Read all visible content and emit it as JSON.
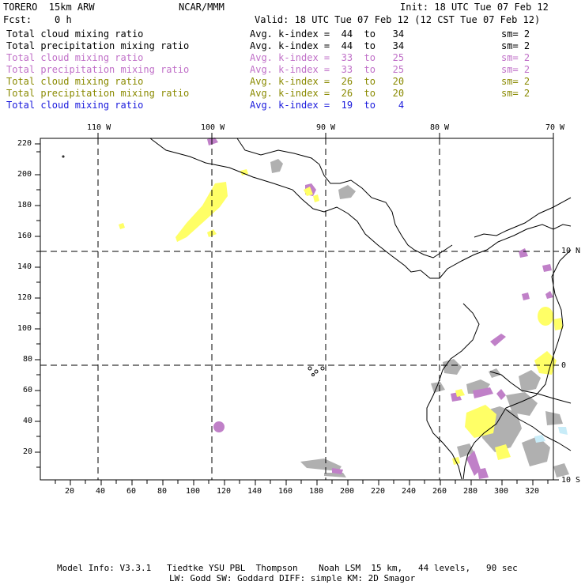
{
  "header": {
    "title_left": "TORERO  15km ARW",
    "title_center": "NCAR/MMM",
    "init": "Init: 18 UTC Tue 07 Feb 12",
    "fcst": "Fcst:    0 h",
    "valid": "Valid: 18 UTC Tue 07 Feb 12 (12 CST Tue 07 Feb 12)"
  },
  "legend": [
    {
      "field": "Total cloud mixing ratio",
      "index": "Avg. k-index =  44  to   34",
      "sm": "sm= 2",
      "color": "#000000"
    },
    {
      "field": "Total precipitation mixing ratio",
      "index": "Avg. k-index =  44  to   34",
      "sm": "sm= 2",
      "color": "#000000"
    },
    {
      "field": "Total cloud mixing ratio",
      "index": "Avg. k-index =  33  to   25",
      "sm": "sm= 2",
      "color": "#c070c8"
    },
    {
      "field": "Total precipitation mixing ratio",
      "index": "Avg. k-index =  33  to   25",
      "sm": "sm= 2",
      "color": "#c070c8"
    },
    {
      "field": "Total cloud mixing ratio",
      "index": "Avg. k-index =  26  to   20",
      "sm": "sm= 2",
      "color": "#8a8a00"
    },
    {
      "field": "Total precipitation mixing ratio",
      "index": "Avg. k-index =  26  to   20",
      "sm": "sm= 2",
      "color": "#8a8a00"
    },
    {
      "field": "Total cloud mixing ratio",
      "index": "Avg. k-index =  19  to    4",
      "sm": "",
      "color": "#1a1adc"
    }
  ],
  "longitude_labels": [
    "110 W",
    "100 W",
    "90 W",
    "80 W",
    "70 W"
  ],
  "latitude_labels": [
    "10 N",
    "0",
    "10 S"
  ],
  "x_ticks": [
    "20",
    "40",
    "60",
    "80",
    "100",
    "120",
    "140",
    "160",
    "180",
    "200",
    "220",
    "240",
    "260",
    "280",
    "300",
    "320"
  ],
  "y_ticks": [
    "220",
    "200",
    "180",
    "160",
    "140",
    "120",
    "100",
    "80",
    "60",
    "40",
    "20"
  ],
  "footer": {
    "line1": "Model Info: V3.3.1   Tiedtke YSU PBL  Thompson    Noah LSM  15 km,   44 levels,   90 sec",
    "line2": "LW: Godd SW: Goddard DIFF: simple KM: 2D Smagor"
  },
  "colors": {
    "gray": "#b0b0b0",
    "yellow": "#ffff66",
    "purple": "#c080c8",
    "lightblue": "#c8ecf8"
  }
}
